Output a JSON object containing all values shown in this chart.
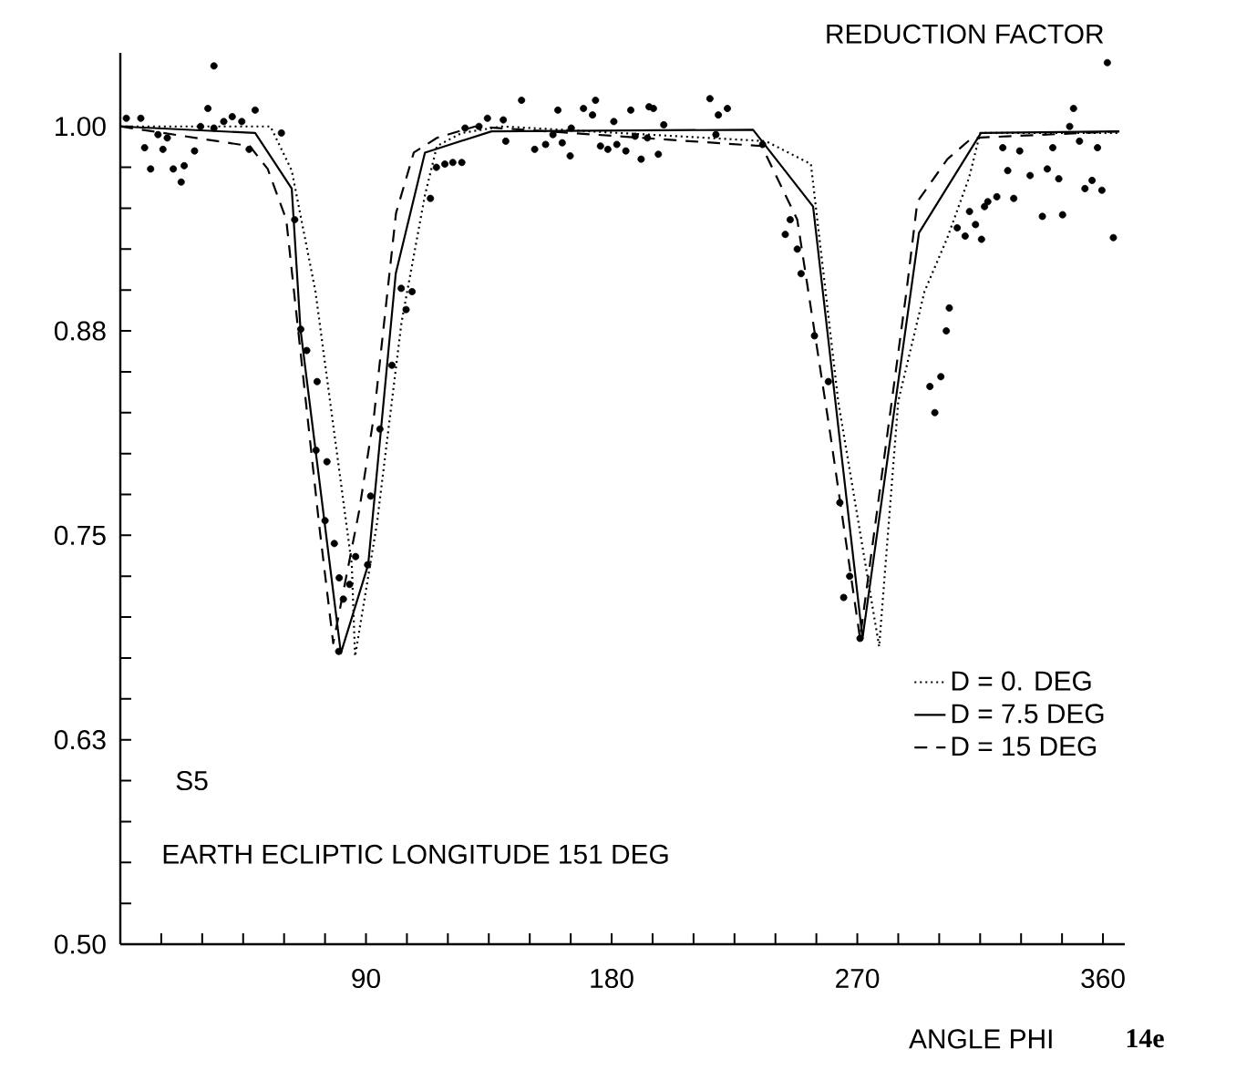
{
  "chart_data": {
    "type": "line",
    "ylabel": "REDUCTION FACTOR",
    "xlabel": "ANGLE PHI",
    "annotations": [
      "S5",
      "EARTH ECLIPTIC LONGITUDE 151 DEG",
      "14e"
    ],
    "xlim": [
      0,
      368
    ],
    "ylim": [
      0.5,
      1.045
    ],
    "xticks": [
      {
        "value": 15,
        "label": null
      },
      {
        "value": 30,
        "label": null
      },
      {
        "value": 45,
        "label": null
      },
      {
        "value": 60,
        "label": null
      },
      {
        "value": 75,
        "label": null
      },
      90,
      {
        "value": 105,
        "label": null
      },
      {
        "value": 120,
        "label": null
      },
      {
        "value": 135,
        "label": null
      },
      {
        "value": 150,
        "label": null
      },
      {
        "value": 165,
        "label": null
      },
      180,
      {
        "value": 195,
        "label": null
      },
      {
        "value": 210,
        "label": null
      },
      {
        "value": 225,
        "label": null
      },
      {
        "value": 240,
        "label": null
      },
      {
        "value": 255,
        "label": null
      },
      270,
      {
        "value": 285,
        "label": null
      },
      {
        "value": 300,
        "label": null
      },
      {
        "value": 315,
        "label": null
      },
      {
        "value": 330,
        "label": null
      },
      {
        "value": 345,
        "label": null
      },
      360
    ],
    "yticks": [
      {
        "value": 0.5,
        "label": "0.50"
      },
      {
        "value": 0.525,
        "label": null
      },
      {
        "value": 0.55,
        "label": null
      },
      {
        "value": 0.575,
        "label": null
      },
      {
        "value": 0.6,
        "label": null
      },
      {
        "value": 0.625,
        "label": "0.63"
      },
      {
        "value": 0.65,
        "label": null
      },
      {
        "value": 0.675,
        "label": null
      },
      {
        "value": 0.7,
        "label": null
      },
      {
        "value": 0.725,
        "label": null
      },
      {
        "value": 0.75,
        "label": "0.75"
      },
      {
        "value": 0.775,
        "label": null
      },
      {
        "value": 0.8,
        "label": null
      },
      {
        "value": 0.825,
        "label": null
      },
      {
        "value": 0.85,
        "label": null
      },
      {
        "value": 0.875,
        "label": "0.88"
      },
      {
        "value": 0.9,
        "label": null
      },
      {
        "value": 0.925,
        "label": null
      },
      {
        "value": 0.95,
        "label": null
      },
      {
        "value": 0.975,
        "label": null
      },
      {
        "value": 1.0,
        "label": "1.00"
      }
    ],
    "legend": "bottom right",
    "series": [
      {
        "name": "D = 0.  DEG",
        "line_style": "dotted",
        "color": "#000000",
        "x": [
          0,
          55,
          62.8,
          71.5,
          84.8,
          86,
          94,
          103,
          111.6,
          116,
          125,
          140,
          236.5,
          253,
          263,
          278,
          285,
          294.6,
          303,
          311,
          315,
          366
        ],
        "values": [
          1.0,
          1.0,
          0.973,
          0.899,
          0.732,
          0.676,
          0.757,
          0.88,
          0.958,
          0.988,
          0.996,
          1.0,
          0.991,
          0.977,
          0.832,
          0.682,
          0.832,
          0.899,
          0.932,
          0.969,
          0.996,
          0.996
        ]
      },
      {
        "name": "D = 7.5 DEG",
        "line_style": "solid",
        "color": "#000000",
        "x": [
          0,
          49.4,
          62.8,
          66,
          80.8,
          90.8,
          100.9,
          111.6,
          136,
          231.8,
          253.8,
          271.9,
          292.6,
          315.3,
          366
        ],
        "values": [
          1.0,
          0.996,
          0.962,
          0.876,
          0.678,
          0.732,
          0.91,
          0.984,
          0.997,
          0.998,
          0.951,
          0.687,
          0.935,
          0.996,
          0.997
        ]
      },
      {
        "name": "D = 15  DEG",
        "line_style": "dashed",
        "color": "#000000",
        "x": [
          0,
          47.4,
          54,
          60.8,
          72.8,
          78,
          87.5,
          93,
          101,
          107.5,
          116,
          130,
          235,
          248,
          260,
          271,
          276.6,
          288,
          292,
          303,
          312,
          366
        ],
        "values": [
          1.0,
          0.988,
          0.974,
          0.943,
          0.757,
          0.684,
          0.765,
          0.824,
          0.947,
          0.984,
          0.993,
          1.0,
          0.988,
          0.943,
          0.813,
          0.687,
          0.757,
          0.899,
          0.954,
          0.98,
          0.993,
          0.997
        ]
      },
      {
        "type": "scatter",
        "marker": "circle",
        "color": "#000000",
        "x": [
          2.2,
          7.5,
          8.9,
          11.1,
          13.8,
          15.6,
          17.2,
          19.4,
          22.3,
          23.4,
          27.2,
          29.4,
          32.1,
          34.3,
          34.3,
          37.9,
          41,
          44.5,
          47.2,
          49.4,
          59,
          63.9,
          66.1,
          68.3,
          72.1,
          71.7,
          75.7,
          75,
          78.4,
          80.2,
          84,
          81.7,
          86.2,
          90.6,
          80,
          91.7,
          95.1,
          99.5,
          102.9,
          104.7,
          106.9,
          113.6,
          115.8,
          118.9,
          121.8,
          125.1,
          126.3,
          131.4,
          134.5,
          140.3,
          141.2,
          147,
          151.8,
          155.8,
          158.5,
          160.3,
          161.9,
          164.8,
          165.2,
          169.7,
          173,
          174.1,
          175.9,
          178.6,
          180.8,
          181.9,
          185.2,
          187,
          188.6,
          190.8,
          193.1,
          193.7,
          195.3,
          197.1,
          199.1,
          216,
          218.2,
          219.1,
          222.4,
          235.3,
          243.6,
          245.4,
          248,
          249.4,
          254.3,
          259.4,
          263.6,
          267.2,
          265,
          271,
          296.6,
          298.4,
          300.6,
          302.6,
          303.7,
          306.6,
          309.5,
          311.1,
          313.3,
          315.5,
          316.6,
          317.8,
          321.1,
          323.3,
          325.1,
          327.3,
          329.5,
          333.3,
          337.8,
          339.6,
          341.6,
          343.8,
          345.2,
          347.8,
          349.2,
          351.4,
          353.4,
          356,
          358,
          359.6,
          361.6,
          363.8
        ],
        "values": [
          1.005,
          1.005,
          0.987,
          0.974,
          0.995,
          0.986,
          0.993,
          0.974,
          0.966,
          0.976,
          0.985,
          1.0,
          1.011,
          1.037,
          0.999,
          1.003,
          1.006,
          1.003,
          0.986,
          1.01,
          0.996,
          0.943,
          0.876,
          0.863,
          0.844,
          0.802,
          0.795,
          0.759,
          0.745,
          0.724,
          0.72,
          0.711,
          0.737,
          0.732,
          0.679,
          0.774,
          0.815,
          0.854,
          0.901,
          0.888,
          0.899,
          0.956,
          0.975,
          0.977,
          0.978,
          0.978,
          0.999,
          1.0,
          1.005,
          1.004,
          0.991,
          1.016,
          0.986,
          0.989,
          0.995,
          1.01,
          0.99,
          0.982,
          0.999,
          1.011,
          1.007,
          1.016,
          0.988,
          0.986,
          1.003,
          0.989,
          0.985,
          1.01,
          0.994,
          0.98,
          0.993,
          1.012,
          1.011,
          0.983,
          1.001,
          1.017,
          0.995,
          1.007,
          1.011,
          0.989,
          0.934,
          0.943,
          0.925,
          0.91,
          0.872,
          0.844,
          0.77,
          0.725,
          0.712,
          0.687,
          0.841,
          0.825,
          0.847,
          0.875,
          0.889,
          0.938,
          0.933,
          0.948,
          0.94,
          0.931,
          0.951,
          0.954,
          0.957,
          0.987,
          0.973,
          0.956,
          0.985,
          0.97,
          0.945,
          0.974,
          0.987,
          0.968,
          0.946,
          1.0,
          1.011,
          0.991,
          0.962,
          0.967,
          0.987,
          0.961,
          1.039,
          0.932
        ]
      }
    ]
  }
}
